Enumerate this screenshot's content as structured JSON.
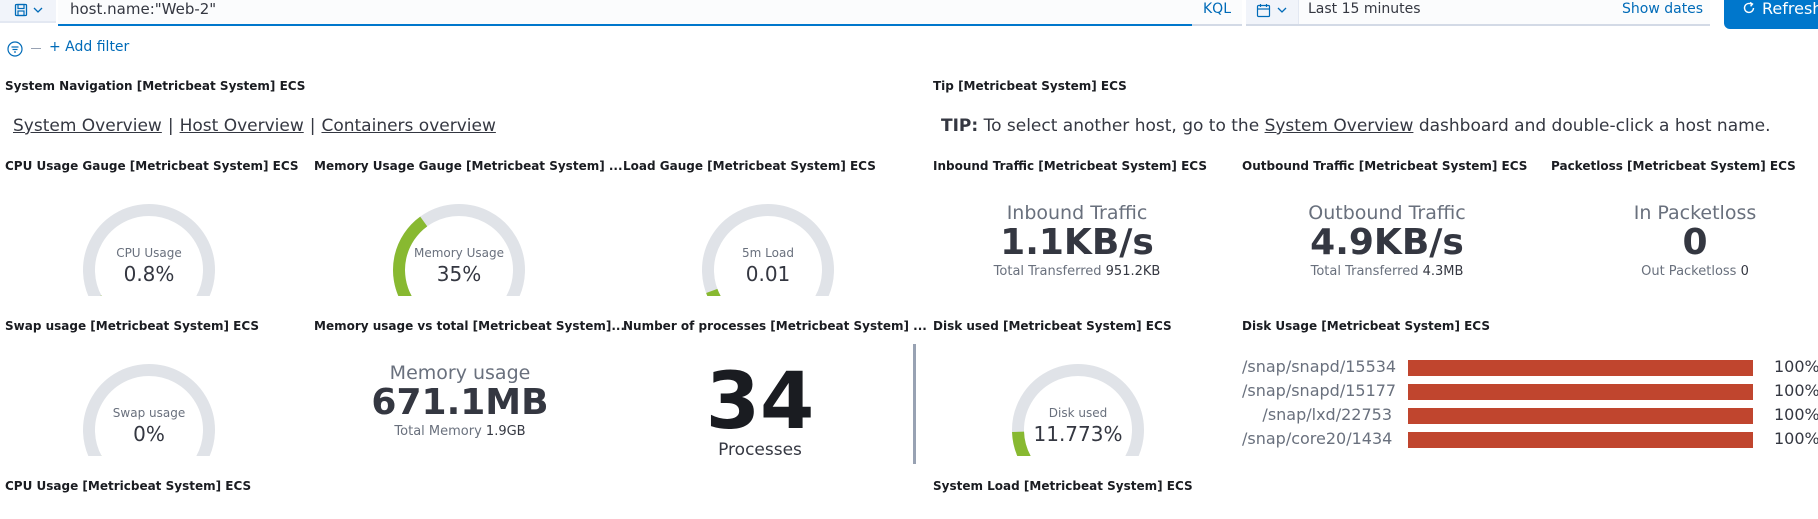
{
  "query": {
    "value": "host.name:\"Web-2\"",
    "language": "KQL"
  },
  "time": {
    "range": "Last 15 minutes",
    "show_dates": "Show dates",
    "refresh": "Refresh"
  },
  "filters": {
    "add_filter": "+ Add filter"
  },
  "panels": {
    "nav": {
      "title": "System Navigation [Metricbeat System] ECS",
      "links": [
        "System Overview",
        "Host Overview",
        "Containers overview"
      ]
    },
    "tip": {
      "title": "Tip [Metricbeat System] ECS",
      "label": "TIP:",
      "text_before": " To select another host, go to the ",
      "link": "System Overview",
      "text_after": " dashboard and double-click a host name."
    },
    "cpu_gauge": {
      "title": "CPU Usage Gauge [Metricbeat System] ECS",
      "label": "CPU Usage",
      "value": "0.8%",
      "fraction": 0.008
    },
    "mem_gauge": {
      "title": "Memory Usage Gauge [Metricbeat System] ...",
      "label": "Memory Usage",
      "value": "35%",
      "fraction": 0.35
    },
    "load_gauge": {
      "title": "Load Gauge [Metricbeat System] ECS",
      "label": "5m Load",
      "value": "0.01",
      "fraction": 0.04
    },
    "inbound": {
      "title": "Inbound Traffic [Metricbeat System] ECS",
      "metric_title": "Inbound Traffic",
      "value": "1.1KB/s",
      "sub_label": "Total Transferred",
      "sub_value": "951.2KB"
    },
    "outbound": {
      "title": "Outbound Traffic [Metricbeat System] ECS",
      "metric_title": "Outbound Traffic",
      "value": "4.9KB/s",
      "sub_label": "Total Transferred",
      "sub_value": "4.3MB"
    },
    "packetloss": {
      "title": "Packetloss [Metricbeat System] ECS",
      "metric_title": "In Packetloss",
      "value": "0",
      "sub_label": "Out Packetloss",
      "sub_value": "0"
    },
    "swap": {
      "title": "Swap usage [Metricbeat System] ECS",
      "label": "Swap usage",
      "value": "0%",
      "fraction": 0
    },
    "mem_total": {
      "title": "Memory usage vs total [Metricbeat System]...",
      "metric_title": "Memory usage",
      "value": "671.1MB",
      "sub_label": "Total Memory",
      "sub_value": "1.9GB"
    },
    "processes": {
      "title": "Number of processes [Metricbeat System] ...",
      "value": "34",
      "label": "Processes"
    },
    "disk_used": {
      "title": "Disk used [Metricbeat System] ECS",
      "label": "Disk used",
      "value": "11.773%",
      "fraction": 0.11773
    },
    "disk_usage": {
      "title": "Disk Usage [Metricbeat System] ECS",
      "rows": [
        {
          "mount": "/snap/snapd/15534",
          "pct": "100%",
          "fraction": 1.0
        },
        {
          "mount": "/snap/snapd/15177",
          "pct": "100%",
          "fraction": 1.0
        },
        {
          "mount": "/snap/lxd/22753",
          "pct": "100%",
          "fraction": 1.0
        },
        {
          "mount": "/snap/core20/1434",
          "pct": "100%",
          "fraction": 1.0
        }
      ]
    },
    "cpu_usage": {
      "title": "CPU Usage [Metricbeat System] ECS"
    },
    "system_load": {
      "title": "System Load [Metricbeat System] ECS"
    }
  },
  "colors": {
    "gauge_track": "#e0e3e8",
    "gauge_fill": "#88b931",
    "disk_bar": "#c0452e",
    "accent": "#0077cc"
  }
}
